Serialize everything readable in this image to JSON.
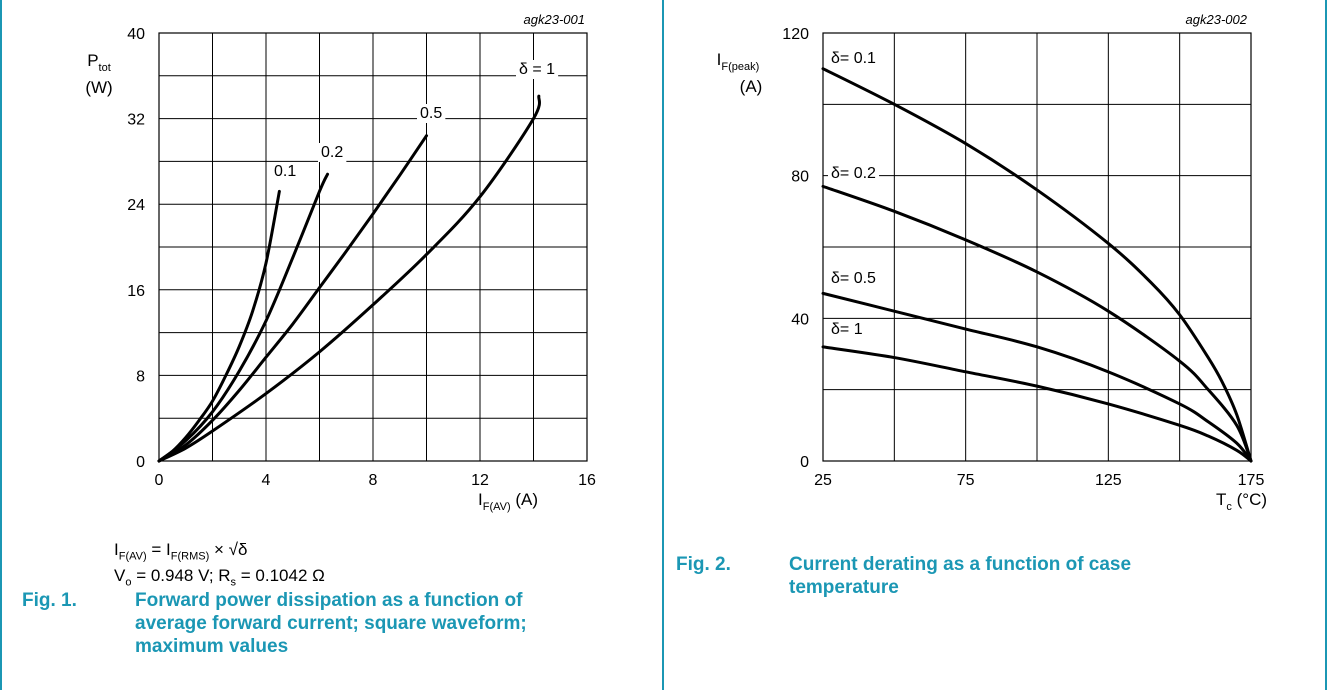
{
  "chart_data": [
    {
      "type": "line",
      "id_label": "agk23-001",
      "ylabel_main": "P",
      "ylabel_sub": "tot",
      "ylabel_unit": "(W)",
      "xlabel_main": "I",
      "xlabel_sub": "F(AV)",
      "xlabel_unit": "(A)",
      "xlim": [
        0,
        16
      ],
      "ylim": [
        0,
        40
      ],
      "xticks": [
        0,
        4,
        8,
        12,
        16
      ],
      "yticks": [
        0,
        8,
        16,
        24,
        32,
        40
      ],
      "grid": true,
      "series": [
        {
          "name": "0.1",
          "points": [
            [
              0,
              0
            ],
            [
              0.5,
              0.9
            ],
            [
              1,
              2.2
            ],
            [
              1.5,
              3.8
            ],
            [
              2,
              5.6
            ],
            [
              2.5,
              8.0
            ],
            [
              3,
              10.7
            ],
            [
              3.5,
              14.0
            ],
            [
              4,
              18.5
            ],
            [
              4.5,
              25.2
            ]
          ]
        },
        {
          "name": "0.2",
          "points": [
            [
              0,
              0
            ],
            [
              1,
              1.9
            ],
            [
              2,
              4.6
            ],
            [
              3,
              8.4
            ],
            [
              4,
              13.1
            ],
            [
              5,
              19.0
            ],
            [
              6,
              25.2
            ],
            [
              6.3,
              26.8
            ]
          ]
        },
        {
          "name": "0.5",
          "points": [
            [
              0,
              0
            ],
            [
              1,
              1.5
            ],
            [
              2,
              3.8
            ],
            [
              3,
              6.6
            ],
            [
              4,
              9.7
            ],
            [
              5,
              12.8
            ],
            [
              6,
              16.2
            ],
            [
              7,
              19.6
            ],
            [
              8,
              23.1
            ],
            [
              9,
              26.7
            ],
            [
              10,
              30.4
            ]
          ]
        },
        {
          "name": "δ = 1",
          "points": [
            [
              0,
              0
            ],
            [
              1,
              1.2
            ],
            [
              2,
              2.8
            ],
            [
              4,
              6.3
            ],
            [
              6,
              10.2
            ],
            [
              8,
              14.6
            ],
            [
              10,
              19.3
            ],
            [
              12,
              24.7
            ],
            [
              14,
              32.0
            ],
            [
              14.2,
              34.1
            ]
          ]
        }
      ]
    },
    {
      "type": "line",
      "id_label": "agk23-002",
      "ylabel_main": "I",
      "ylabel_sub": "F(peak)",
      "ylabel_unit": "(A)",
      "xlabel_main": "T",
      "xlabel_sub": "c",
      "xlabel_unit": "(°C)",
      "xlim": [
        25,
        175
      ],
      "ylim": [
        0,
        120
      ],
      "xticks": [
        25,
        75,
        125,
        175
      ],
      "yticks": [
        0,
        40,
        80,
        120
      ],
      "grid": true,
      "series": [
        {
          "name": "δ= 0.1",
          "points": [
            [
              25,
              110
            ],
            [
              50,
              100
            ],
            [
              75,
              89
            ],
            [
              100,
              76
            ],
            [
              125,
              61
            ],
            [
              140,
              50
            ],
            [
              150,
              41
            ],
            [
              160,
              29
            ],
            [
              165,
              22
            ],
            [
              170,
              13
            ],
            [
              175,
              0
            ]
          ]
        },
        {
          "name": "δ= 0.2",
          "points": [
            [
              25,
              77
            ],
            [
              50,
              70
            ],
            [
              75,
              62
            ],
            [
              100,
              53
            ],
            [
              125,
              42
            ],
            [
              150,
              28
            ],
            [
              160,
              20
            ],
            [
              170,
              10
            ],
            [
              175,
              0
            ]
          ]
        },
        {
          "name": "δ= 0.5",
          "points": [
            [
              25,
              47
            ],
            [
              50,
              42
            ],
            [
              75,
              37
            ],
            [
              100,
              32
            ],
            [
              125,
              25
            ],
            [
              150,
              16
            ],
            [
              160,
              11
            ],
            [
              170,
              5
            ],
            [
              175,
              0
            ]
          ]
        },
        {
          "name": "δ= 1",
          "points": [
            [
              25,
              32
            ],
            [
              50,
              29
            ],
            [
              75,
              25
            ],
            [
              100,
              21
            ],
            [
              125,
              16
            ],
            [
              150,
              10
            ],
            [
              160,
              7
            ],
            [
              170,
              3
            ],
            [
              175,
              0
            ]
          ]
        }
      ]
    }
  ],
  "notes": {
    "line1": {
      "a": "I",
      "a_sub": "F(AV)",
      "b": " = I",
      "b_sub": "F(RMS)",
      "c": " × √δ"
    },
    "line2": {
      "a": "V",
      "a_sub": "o",
      "b": " = 0.948 V; R",
      "b_sub": "s",
      "c": " = 0.1042 Ω"
    }
  },
  "fig1": {
    "num": "Fig. 1.",
    "text": "Forward power dissipation as a function of average forward current; square waveform; maximum values"
  },
  "fig2": {
    "num": "Fig. 2.",
    "text": "Current derating as a function of case temperature"
  },
  "colors": {
    "accent": "#1b97b4",
    "curve": "#000000",
    "grid": "#000000"
  }
}
